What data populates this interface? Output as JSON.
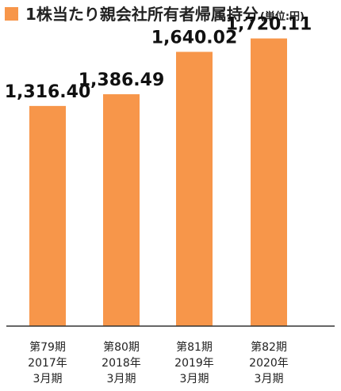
{
  "chart_data": {
    "type": "bar",
    "title": "1株当たり親会社所有者帰属持分",
    "unit": "(単位:円)",
    "categories": [
      [
        "第79期",
        "2017年",
        "3月期"
      ],
      [
        "第80期",
        "2018年",
        "3月期"
      ],
      [
        "第81期",
        "2019年",
        "3月期"
      ],
      [
        "第82期",
        "2020年",
        "3月期"
      ]
    ],
    "values": [
      1316.4,
      1386.49,
      1640.02,
      1720.11
    ],
    "value_labels": [
      "1,316.40",
      "1,386.49",
      "1,640.02",
      "1,720.11"
    ],
    "ylim": [
      0,
      1950
    ],
    "grid": false,
    "bar_color": "#F7964A",
    "legend_marker_color": "#F7964A"
  }
}
